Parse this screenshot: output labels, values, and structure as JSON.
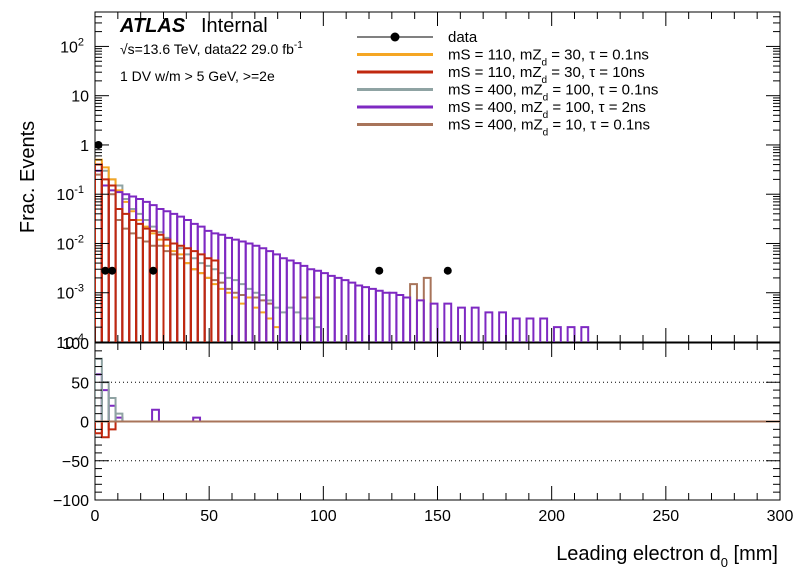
{
  "chart_data": {
    "type": "histogram",
    "upper_panel": {
      "ylabel": "Frac. Events",
      "yscale": "log",
      "ylim": [
        0.0001,
        500
      ],
      "y_ticks": [
        {
          "v": 100,
          "base": "10",
          "exp": "2"
        },
        {
          "v": 10,
          "base": "10",
          "exp": ""
        },
        {
          "v": 1,
          "base": "1",
          "exp": ""
        },
        {
          "v": 0.1,
          "base": "10",
          "exp": "-1"
        },
        {
          "v": 0.01,
          "base": "10",
          "exp": "-2"
        },
        {
          "v": 0.001,
          "base": "10",
          "exp": "-3"
        },
        {
          "v": 0.0001,
          "base": "10",
          "exp": "-4"
        }
      ]
    },
    "lower_panel": {
      "ylim": [
        -100,
        100
      ],
      "y_ticks": [
        100,
        50,
        0,
        -50,
        -100
      ],
      "dotted_lines": [
        50,
        -50,
        -100
      ]
    },
    "x_axis": {
      "label_main": "Leading electron d",
      "label_sub": "0",
      "label_unit": " [mm]",
      "xlim": [
        0,
        300
      ],
      "ticks": [
        0,
        50,
        100,
        150,
        200,
        250,
        300
      ]
    },
    "annotations": {
      "atlas": "ATLAS",
      "internal": "Internal",
      "energy_line": "√s=13.6 TeV, data22 29.0 fb",
      "energy_sup": "-1",
      "selection": "1 DV w/m > 5 GeV, >=2e"
    },
    "legend": {
      "position": "top-right",
      "entries": [
        {
          "kind": "marker",
          "color": "#000000",
          "label": "data"
        },
        {
          "kind": "line",
          "color": "#f5a623",
          "label": [
            "mS = 110, mZ",
            "d",
            " = 30, τ = 0.1ns"
          ]
        },
        {
          "kind": "line",
          "color": "#c0280f",
          "label": [
            "mS = 110, mZ",
            "d",
            " = 30, τ = 10ns"
          ]
        },
        {
          "kind": "line",
          "color": "#8fa3a3",
          "label": [
            "mS = 400, mZ",
            "d",
            " = 100, τ = 0.1ns"
          ]
        },
        {
          "kind": "line",
          "color": "#7e29c2",
          "label": [
            "mS = 400, mZ",
            "d",
            " = 100, τ = 2ns"
          ]
        },
        {
          "kind": "line",
          "color": "#a8745a",
          "label": [
            "mS = 400, mZ",
            "d",
            " = 10, τ = 0.1ns"
          ]
        }
      ]
    },
    "data_points": [
      {
        "x": 1.5,
        "y": 1.0
      },
      {
        "x": 4.5,
        "y": 0.0028
      },
      {
        "x": 7.5,
        "y": 0.0028
      },
      {
        "x": 25.5,
        "y": 0.0028
      },
      {
        "x": 124.5,
        "y": 0.0028
      },
      {
        "x": 154.5,
        "y": 0.0028
      }
    ],
    "series": [
      {
        "name": "mS = 400, mZd = 10, τ = 0.1ns",
        "color": "#a8745a",
        "bins": [
          [
            0,
            0.25
          ],
          [
            3,
            0.15
          ],
          [
            6,
            0.1
          ],
          [
            9,
            0.03
          ],
          [
            12,
            0.02
          ],
          [
            15,
            0.016
          ],
          [
            18,
            0.013
          ],
          [
            21,
            0.011
          ],
          [
            24,
            0.009
          ],
          [
            27,
            0.009
          ],
          [
            30,
            0.007
          ],
          [
            33,
            0.006
          ],
          [
            36,
            0.005
          ],
          [
            39,
            0.004
          ],
          [
            42,
            0.003
          ],
          [
            45,
            0.0025
          ],
          [
            48,
            0.002
          ],
          [
            51,
            0.0018
          ],
          [
            54,
            0.0016
          ],
          [
            57,
            0.0012
          ],
          [
            60,
            0.001
          ],
          [
            63,
            0.0009
          ],
          [
            66,
            0.0008
          ],
          [
            69,
            0.0008
          ],
          [
            72,
            0.0007
          ],
          [
            75,
            0.0006
          ],
          [
            90,
            0.0008
          ],
          [
            96,
            0.0008
          ],
          [
            138,
            0.0015
          ],
          [
            144,
            0.002
          ]
        ]
      },
      {
        "name": "mS = 400, mZd = 100, τ = 0.1ns",
        "color": "#8fa3a3",
        "bins": [
          [
            0,
            0.4
          ],
          [
            3,
            0.3
          ],
          [
            6,
            0.2
          ],
          [
            9,
            0.15
          ],
          [
            12,
            0.08
          ],
          [
            15,
            0.05
          ],
          [
            18,
            0.04
          ],
          [
            21,
            0.03
          ],
          [
            24,
            0.022
          ],
          [
            27,
            0.017
          ],
          [
            30,
            0.013
          ],
          [
            33,
            0.01
          ],
          [
            36,
            0.008
          ],
          [
            39,
            0.006
          ],
          [
            42,
            0.005
          ],
          [
            45,
            0.004
          ],
          [
            48,
            0.0035
          ],
          [
            51,
            0.003
          ],
          [
            54,
            0.0025
          ],
          [
            57,
            0.002
          ],
          [
            60,
            0.0018
          ],
          [
            63,
            0.0015
          ],
          [
            66,
            0.0012
          ],
          [
            69,
            0.001
          ],
          [
            72,
            0.0009
          ],
          [
            75,
            0.0007
          ],
          [
            78,
            0.0005
          ],
          [
            81,
            0.0004
          ],
          [
            84,
            0.0005
          ],
          [
            87,
            0.0004
          ],
          [
            90,
            0.0003
          ],
          [
            93,
            0.0003
          ],
          [
            96,
            0.0002
          ]
        ]
      },
      {
        "name": "mS = 110, mZd = 30, τ = 0.1ns",
        "color": "#f5a623",
        "bins": [
          [
            0,
            0.5
          ],
          [
            3,
            0.35
          ],
          [
            6,
            0.2
          ],
          [
            9,
            0.12
          ],
          [
            12,
            0.07
          ],
          [
            15,
            0.045
          ],
          [
            18,
            0.03
          ],
          [
            21,
            0.022
          ],
          [
            24,
            0.016
          ],
          [
            27,
            0.012
          ],
          [
            30,
            0.009
          ],
          [
            33,
            0.007
          ],
          [
            36,
            0.006
          ],
          [
            39,
            0.004
          ],
          [
            42,
            0.003
          ],
          [
            45,
            0.0025
          ],
          [
            48,
            0.002
          ],
          [
            51,
            0.0015
          ],
          [
            54,
            0.0012
          ],
          [
            57,
            0.001
          ],
          [
            60,
            0.0008
          ],
          [
            63,
            0.0006
          ],
          [
            66,
            0.0008
          ],
          [
            69,
            0.0005
          ],
          [
            72,
            0.0004
          ],
          [
            75,
            0.0003
          ],
          [
            78,
            0.0002
          ]
        ]
      },
      {
        "name": "mS = 400, mZd = 100, τ = 2ns",
        "color": "#7e29c2",
        "bins": [
          [
            0,
            0.3
          ],
          [
            3,
            0.15
          ],
          [
            6,
            0.12
          ],
          [
            9,
            0.11
          ],
          [
            12,
            0.1
          ],
          [
            15,
            0.09
          ],
          [
            18,
            0.08
          ],
          [
            21,
            0.07
          ],
          [
            24,
            0.06
          ],
          [
            27,
            0.05
          ],
          [
            30,
            0.045
          ],
          [
            33,
            0.04
          ],
          [
            36,
            0.035
          ],
          [
            39,
            0.03
          ],
          [
            42,
            0.025
          ],
          [
            45,
            0.022
          ],
          [
            48,
            0.018
          ],
          [
            51,
            0.016
          ],
          [
            54,
            0.015
          ],
          [
            57,
            0.013
          ],
          [
            60,
            0.012
          ],
          [
            63,
            0.011
          ],
          [
            66,
            0.01
          ],
          [
            69,
            0.009
          ],
          [
            72,
            0.008
          ],
          [
            75,
            0.007
          ],
          [
            78,
            0.006
          ],
          [
            81,
            0.005
          ],
          [
            84,
            0.0045
          ],
          [
            87,
            0.004
          ],
          [
            90,
            0.0035
          ],
          [
            93,
            0.003
          ],
          [
            96,
            0.0028
          ],
          [
            99,
            0.0025
          ],
          [
            102,
            0.0022
          ],
          [
            105,
            0.002
          ],
          [
            108,
            0.0018
          ],
          [
            111,
            0.0016
          ],
          [
            114,
            0.0014
          ],
          [
            117,
            0.0013
          ],
          [
            120,
            0.0012
          ],
          [
            123,
            0.0011
          ],
          [
            126,
            0.001
          ],
          [
            129,
            0.001
          ],
          [
            132,
            0.0009
          ],
          [
            135,
            0.0008
          ],
          [
            141,
            0.0007
          ],
          [
            147,
            0.0006
          ],
          [
            153,
            0.0006
          ],
          [
            159,
            0.0005
          ],
          [
            165,
            0.0005
          ],
          [
            171,
            0.0004
          ],
          [
            177,
            0.0004
          ],
          [
            183,
            0.0003
          ],
          [
            189,
            0.0003
          ],
          [
            195,
            0.0003
          ],
          [
            201,
            0.0002
          ],
          [
            207,
            0.0002
          ],
          [
            213,
            0.0002
          ]
        ]
      },
      {
        "name": "mS = 110, mZd = 30, τ = 10ns",
        "color": "#c0280f",
        "bins": [
          [
            0,
            0.4
          ],
          [
            3,
            0.2
          ],
          [
            6,
            0.15
          ],
          [
            9,
            0.05
          ],
          [
            12,
            0.04
          ],
          [
            15,
            0.03
          ],
          [
            18,
            0.025
          ],
          [
            21,
            0.02
          ],
          [
            24,
            0.018
          ],
          [
            27,
            0.015
          ],
          [
            30,
            0.012
          ],
          [
            33,
            0.01
          ],
          [
            36,
            0.009
          ],
          [
            39,
            0.008
          ],
          [
            42,
            0.007
          ],
          [
            45,
            0.006
          ],
          [
            48,
            0.005
          ],
          [
            51,
            0.0045
          ]
        ]
      }
    ],
    "ratio_series": [
      {
        "color": "#7e29c2",
        "bins": [
          [
            0,
            60
          ],
          [
            3,
            40
          ],
          [
            6,
            20
          ],
          [
            9,
            5
          ],
          [
            25,
            15
          ],
          [
            43,
            5
          ]
        ]
      },
      {
        "color": "#8fa3a3",
        "bins": [
          [
            0,
            80
          ],
          [
            3,
            50
          ],
          [
            6,
            30
          ],
          [
            9,
            10
          ]
        ]
      },
      {
        "color": "#c0280f",
        "bins": [
          [
            0,
            -15
          ],
          [
            3,
            -20
          ],
          [
            6,
            -10
          ]
        ]
      }
    ]
  }
}
